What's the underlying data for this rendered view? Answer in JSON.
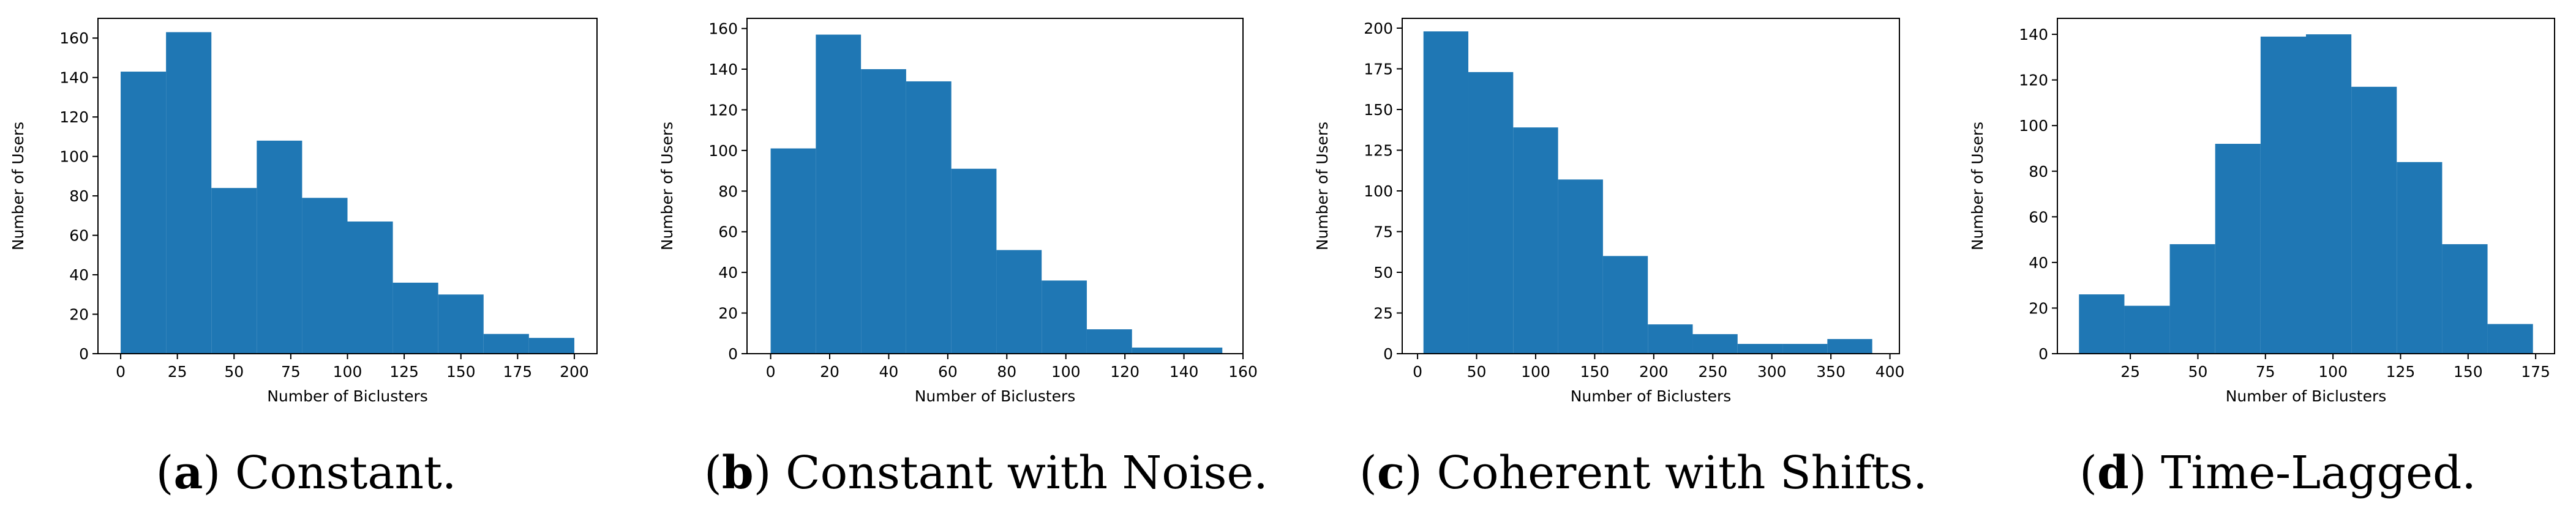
{
  "bar_color": "#1f77b4",
  "chart_data": [
    {
      "type": "bar",
      "title": "",
      "xlabel": "Number of Biclusters",
      "ylabel": "Number of Users",
      "xlim": [
        -10,
        210
      ],
      "ylim": [
        0,
        170
      ],
      "xticks": [
        0,
        25,
        50,
        75,
        100,
        125,
        150,
        175,
        200
      ],
      "yticks": [
        0,
        20,
        40,
        60,
        80,
        100,
        120,
        140,
        160
      ],
      "bin_edges": [
        0,
        20,
        40,
        60,
        80,
        100,
        120,
        140,
        160,
        180,
        200
      ],
      "values": [
        143,
        163,
        84,
        108,
        79,
        67,
        36,
        30,
        10,
        8
      ],
      "caption_letter": "a",
      "caption_text": "Constant."
    },
    {
      "type": "bar",
      "title": "",
      "xlabel": "Number of Biclusters",
      "ylabel": "Number of Users",
      "xlim": [
        -8,
        160
      ],
      "ylim": [
        0,
        165
      ],
      "xticks": [
        0,
        20,
        40,
        60,
        80,
        100,
        120,
        140,
        160
      ],
      "yticks": [
        0,
        20,
        40,
        60,
        80,
        100,
        120,
        140,
        160
      ],
      "bin_edges": [
        0,
        15.3,
        30.6,
        45.9,
        61.2,
        76.5,
        91.8,
        107.1,
        122.4,
        137.7,
        153
      ],
      "values": [
        101,
        157,
        140,
        134,
        91,
        51,
        36,
        12,
        3,
        3
      ],
      "caption_letter": "b",
      "caption_text": "Constant with Noise."
    },
    {
      "type": "bar",
      "title": "",
      "xlabel": "Number of Biclusters",
      "ylabel": "Number of Users",
      "xlim": [
        -13,
        408
      ],
      "ylim": [
        0,
        206
      ],
      "xticks": [
        0,
        50,
        100,
        150,
        200,
        250,
        300,
        350,
        400
      ],
      "yticks": [
        0,
        25,
        50,
        75,
        100,
        125,
        150,
        175,
        200
      ],
      "bin_edges": [
        5,
        43,
        81,
        119,
        157,
        195,
        233,
        271,
        309,
        347,
        385
      ],
      "values": [
        198,
        173,
        139,
        107,
        60,
        18,
        12,
        6,
        6,
        9
      ],
      "caption_letter": "c",
      "caption_text": "Coherent with Shifts."
    },
    {
      "type": "bar",
      "title": "",
      "xlabel": "Number of Biclusters",
      "ylabel": "Number of Users",
      "xlim": [
        -2,
        182
      ],
      "ylim": [
        0,
        147
      ],
      "xticks": [
        25,
        50,
        75,
        100,
        125,
        150,
        175
      ],
      "yticks": [
        0,
        20,
        40,
        60,
        80,
        100,
        120,
        140
      ],
      "bin_edges": [
        6,
        22.8,
        39.6,
        56.4,
        73.2,
        90,
        106.8,
        123.6,
        140.4,
        157.2,
        174
      ],
      "values": [
        26,
        21,
        48,
        92,
        139,
        140,
        117,
        84,
        48,
        13
      ],
      "caption_letter": "d",
      "caption_text": "Time-Lagged."
    }
  ]
}
